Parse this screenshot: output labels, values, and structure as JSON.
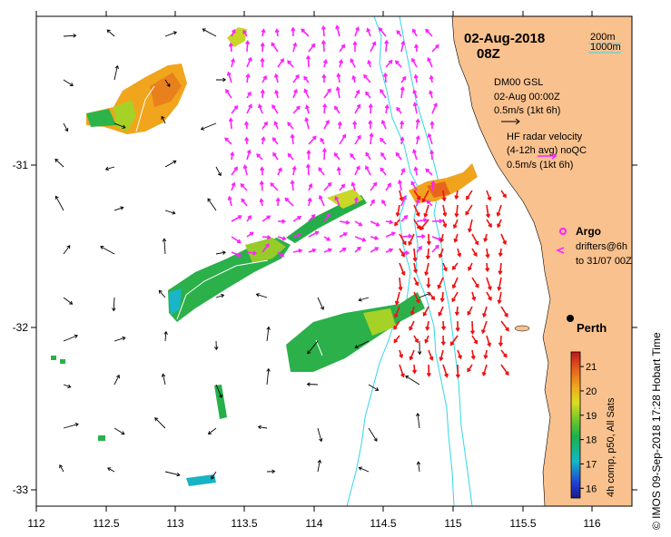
{
  "title": {
    "date": "02-Aug-2018",
    "time": "08Z"
  },
  "scale_legend": {
    "depth_a": "200m",
    "depth_b": "1000m"
  },
  "model_legend": {
    "name": "DM00 GSL",
    "datetime": "02-Aug 00:00Z",
    "scale": "0.5m/s (1kt 6h)"
  },
  "hf_legend": {
    "line1": "HF radar velocity",
    "line2": "(4-12h avg) noQC",
    "scale": "0.5m/s (1kt 6h)"
  },
  "argo_legend": {
    "label": "Argo"
  },
  "drifter_legend": {
    "line1": "drifters@6h",
    "line2": "to 31/07 00Z"
  },
  "city": {
    "name": "Perth"
  },
  "x_axis": {
    "ticks": [
      "112",
      "112.5",
      "113",
      "113.5",
      "114",
      "114.5",
      "115",
      "115.5",
      "116"
    ]
  },
  "y_axis": {
    "ticks": [
      "-31",
      "-32",
      "-33"
    ]
  },
  "colorbar": {
    "label": "4h comp, p50, All Sats",
    "ticks": [
      "21",
      "20",
      "19",
      "18",
      "17",
      "16"
    ],
    "min": 15.6,
    "max": 21.6
  },
  "credit": "© IMOS 09-Sep-2018 17:28 Hobart Time",
  "colors": {
    "land": "#f9c18e",
    "contour": "#33d6e8",
    "model_arrow": "#000000",
    "hf_arrow_north": "#ff22ff",
    "hf_arrow_south": "#ee1111"
  }
}
